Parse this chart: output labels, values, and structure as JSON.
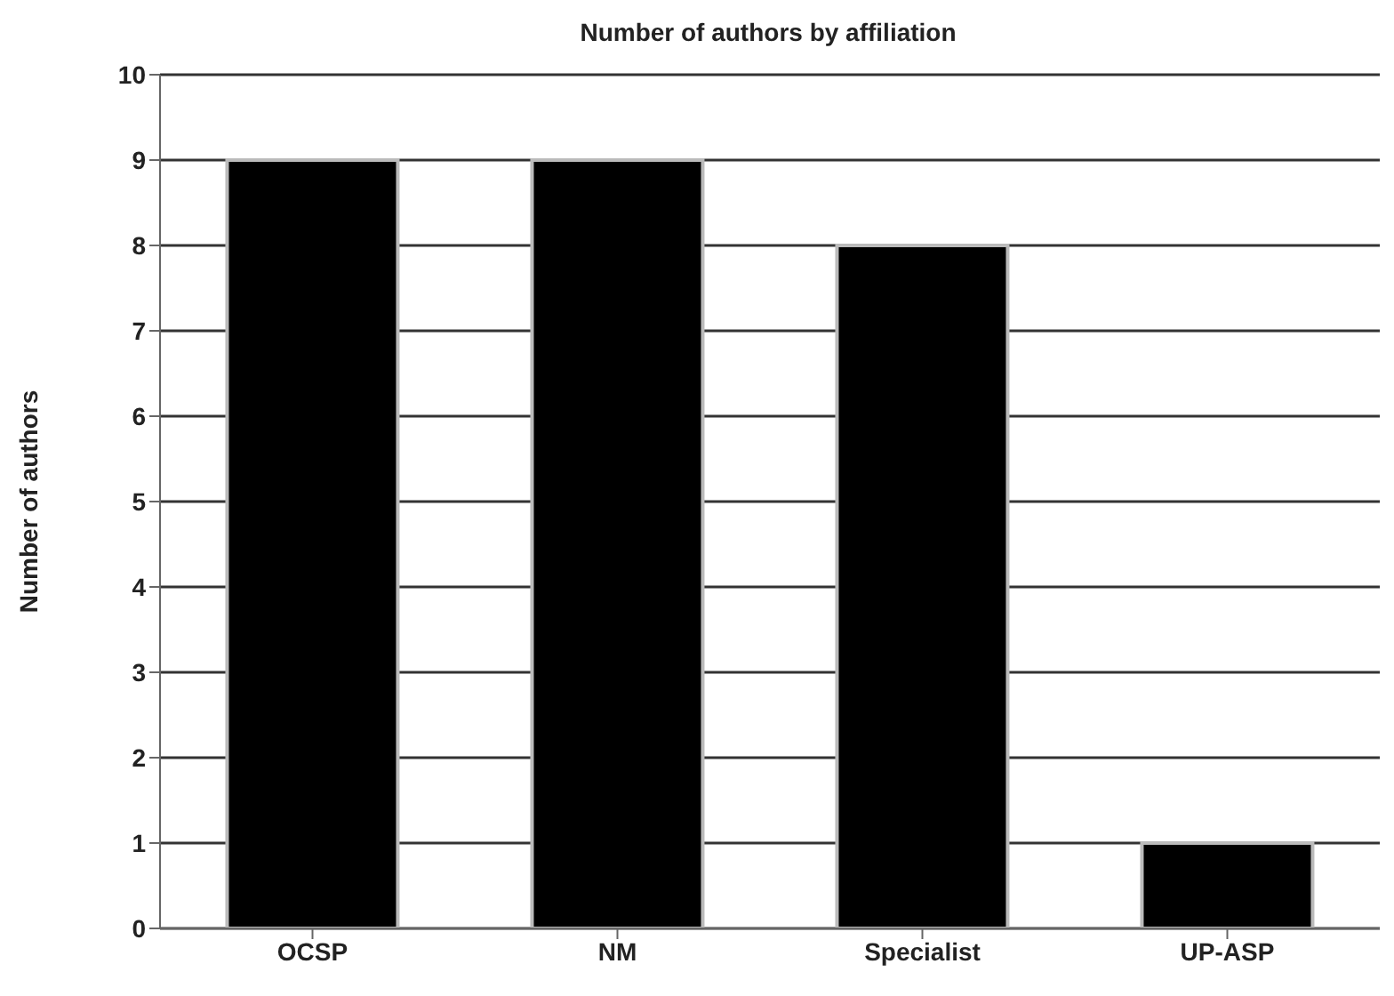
{
  "chart_data": {
    "type": "bar",
    "title": "Number of authors by affiliation",
    "ylabel": "Number of authors",
    "categories": [
      "OCSP",
      "NM",
      "Specialist",
      "UP-ASP"
    ],
    "values": [
      9,
      9,
      8,
      1
    ],
    "color": "#000000",
    "ylim": [
      0,
      10
    ],
    "yticks": [
      0,
      1,
      2,
      3,
      4,
      5,
      6,
      7,
      8,
      9,
      10
    ],
    "grid": "y"
  }
}
